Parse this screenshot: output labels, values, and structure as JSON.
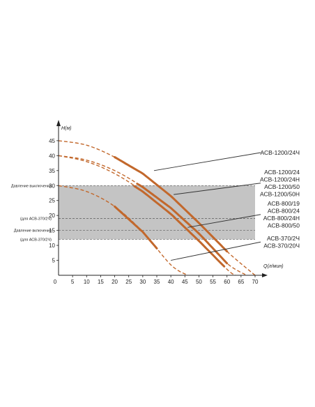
{
  "chart_data": {
    "type": "line",
    "xlabel": "Q(л/мин)",
    "ylabel": "H(м)",
    "xlim": [
      0,
      70
    ],
    "ylim": [
      0,
      48
    ],
    "x_ticks": [
      5,
      10,
      15,
      20,
      25,
      30,
      35,
      40,
      45,
      50,
      55,
      60,
      65,
      70
    ],
    "y_ticks": [
      5,
      10,
      15,
      20,
      25,
      30,
      35,
      40,
      45
    ],
    "origin_label": "0",
    "grid": false,
    "operating_band": {
      "y_min": 12,
      "y_max": 30,
      "x_max": 70,
      "color": "#c4c4c4"
    },
    "reference_lines": [
      {
        "y": 30,
        "label": "Давление выключения"
      },
      {
        "y": 19,
        "label": "(для АСВ-370/2Ч)"
      },
      {
        "y": 15,
        "label": "Давление включения"
      },
      {
        "y": 12,
        "label": "(для АСВ-370/2Ч)"
      }
    ],
    "series": [
      {
        "group": "acb1200_24ch",
        "labels": [
          "АСВ-1200/24Ч"
        ],
        "x": [
          0,
          10,
          20,
          30,
          40,
          50,
          60,
          70
        ],
        "y": [
          45,
          43.5,
          39.5,
          34,
          26.5,
          17.5,
          8,
          0
        ],
        "solid_x_range": [
          20,
          60
        ],
        "pointer": {
          "x": 34,
          "y": 35
        }
      },
      {
        "group": "acb1200",
        "labels": [
          "АСВ-1200/24",
          "АСВ-1200/24Н",
          "АСВ-1200/50",
          "АСВ-1200/50Н"
        ],
        "x": [
          0,
          10,
          20,
          30,
          40,
          50,
          60,
          67
        ],
        "y": [
          40,
          38.5,
          35,
          29.5,
          22.5,
          14,
          4,
          0
        ],
        "solid_x_range": [
          28,
          60
        ],
        "pointer": {
          "x": 41,
          "y": 27
        }
      },
      {
        "group": "acb800",
        "labels": [
          "АСВ-800/19",
          "АСВ-800/24",
          "АСВ-800/24Н",
          "АСВ-800/50"
        ],
        "x": [
          0,
          10,
          20,
          30,
          40,
          50,
          60,
          63
        ],
        "y": [
          40,
          38,
          34,
          28,
          20.5,
          11.5,
          2,
          0
        ],
        "solid_x_range": [
          27,
          59
        ],
        "pointer": {
          "x": 46,
          "y": 16
        }
      },
      {
        "group": "acb370",
        "labels": [
          "АСВ-370/2Ч",
          "АСВ-370/20Ч"
        ],
        "x": [
          0,
          10,
          20,
          30,
          40,
          46
        ],
        "y": [
          30,
          28,
          23,
          14.5,
          3.5,
          0
        ],
        "solid_x_range": [
          20,
          35
        ],
        "pointer": {
          "x": 40,
          "y": 5
        }
      }
    ],
    "colors": {
      "curve": "#c2682c",
      "axis": "#222222",
      "pointer": "#333333"
    }
  }
}
